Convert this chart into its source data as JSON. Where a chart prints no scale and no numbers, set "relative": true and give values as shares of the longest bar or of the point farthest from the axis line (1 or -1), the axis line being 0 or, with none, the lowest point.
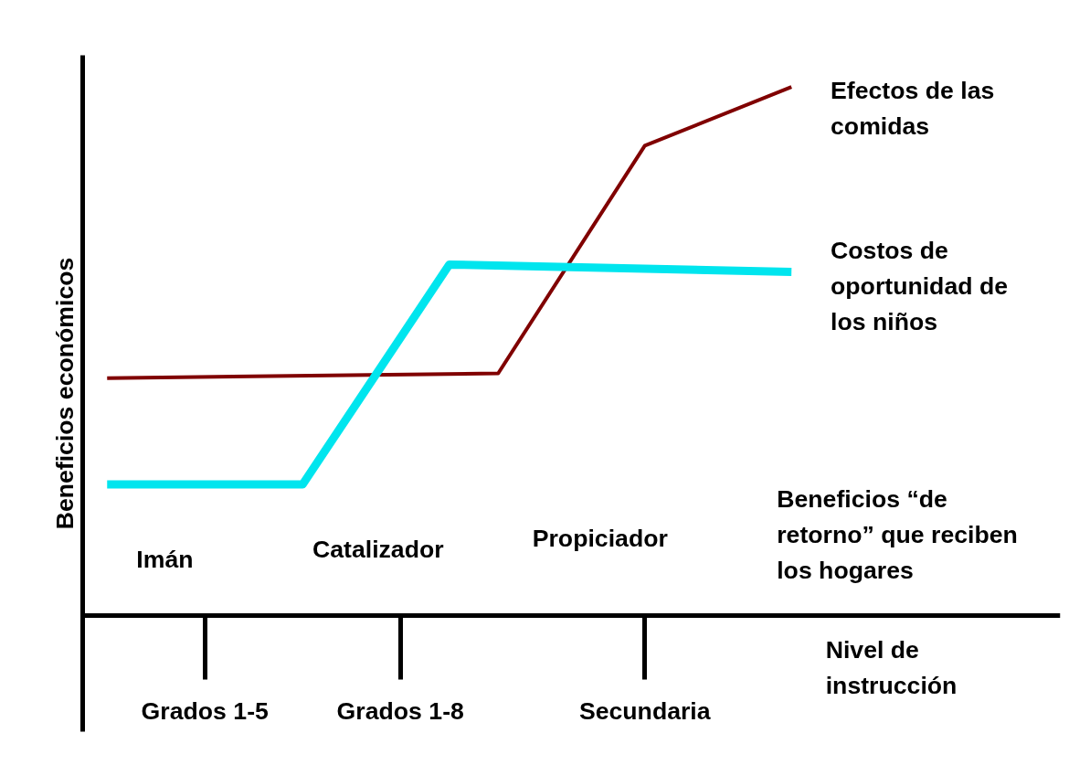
{
  "chart_data": {
    "type": "line",
    "relative": true,
    "xlabel": "Nivel de instrucción",
    "ylabel": "Beneficios económicos",
    "categories": [
      null,
      null,
      "Grados 1-5",
      null,
      null,
      null,
      "Grados 1-8",
      null,
      null,
      null,
      null,
      "Secundaria",
      null,
      null,
      null,
      null,
      null,
      null,
      null,
      null
    ],
    "grid": false,
    "legend": false,
    "marker": "none",
    "line_style": "solid",
    "series": [
      {
        "name": "Efectos de las comidas",
        "color": "#800000",
        "values": [
          0.449,
          null,
          null,
          null,
          null,
          null,
          null,
          null,
          0.458,
          null,
          null,
          0.889,
          null,
          null,
          1,
          null,
          null,
          null,
          null,
          null
        ]
      },
      {
        "name": "Costos de oportunidad de los niños",
        "color": "#00e5ee",
        "values": [
          0.248,
          null,
          null,
          null,
          0.248,
          null,
          null,
          0.664,
          null,
          null,
          null,
          null,
          null,
          null,
          0.65,
          null,
          null,
          null,
          null,
          null
        ]
      }
    ],
    "annotations": [
      "Imán",
      "Catalizador",
      "Propiciador",
      "Beneficios “de retorno” que reciben los hogares"
    ]
  }
}
